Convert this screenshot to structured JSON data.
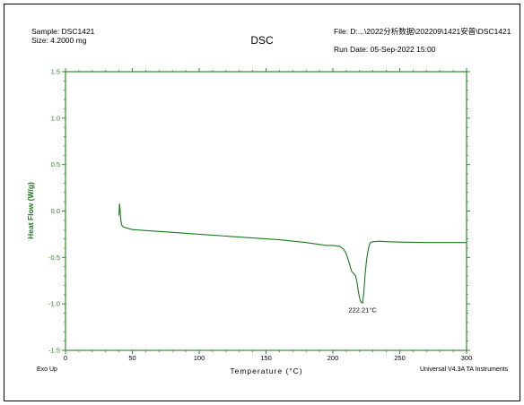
{
  "header": {
    "sample": "Sample: DSC1421",
    "size": "Size:  4.2000 mg",
    "title": "DSC",
    "file": "File: D:...\\2022分析数据\\202209\\1421安普\\DSC1421",
    "run_date": "Run Date: 05-Sep-2022 15:00"
  },
  "footer": {
    "exo": "Exo Up",
    "software": "Universal V4.3A TA Instruments"
  },
  "colors": {
    "curve": "#1a7a1a",
    "axis": "#2e8b2e"
  },
  "chart_data": {
    "type": "line",
    "title": "DSC",
    "xlabel": "Temperature (°C)",
    "ylabel": "Heat Flow (W/g)",
    "xlim": [
      0,
      300
    ],
    "ylim": [
      -1.5,
      1.5
    ],
    "xticks": [
      0,
      50,
      100,
      150,
      200,
      250,
      300
    ],
    "yticks": [
      -1.5,
      -1.0,
      -0.5,
      0.0,
      0.5,
      1.0,
      1.5
    ],
    "xtick_labels": [
      "0",
      "50",
      "100",
      "150",
      "200",
      "250",
      "300"
    ],
    "ytick_labels": [
      "-1.5",
      "-1.0",
      "-0.5",
      "0.0",
      "0.5",
      "1.0",
      "1.5"
    ],
    "grid": false,
    "series": [
      {
        "x": [
          40.0,
          40.4,
          40.8,
          41.2,
          41.6,
          42,
          43,
          45,
          50,
          60,
          80,
          100,
          120,
          140,
          160,
          180,
          190,
          195,
          200,
          205,
          208,
          210,
          212,
          214,
          216,
          217,
          218,
          219,
          220,
          221,
          222.2,
          223,
          224,
          225,
          226,
          227,
          228,
          230,
          235,
          240,
          250,
          270,
          300
        ],
        "y": [
          -0.05,
          0.08,
          0.02,
          -0.07,
          -0.12,
          -0.15,
          -0.17,
          -0.18,
          -0.2,
          -0.21,
          -0.23,
          -0.25,
          -0.27,
          -0.29,
          -0.31,
          -0.34,
          -0.36,
          -0.37,
          -0.37,
          -0.38,
          -0.41,
          -0.46,
          -0.55,
          -0.65,
          -0.68,
          -0.7,
          -0.76,
          -0.86,
          -0.94,
          -0.98,
          -0.99,
          -0.9,
          -0.7,
          -0.55,
          -0.45,
          -0.38,
          -0.34,
          -0.33,
          -0.325,
          -0.33,
          -0.335,
          -0.34,
          -0.34
        ]
      }
    ],
    "annotations": [
      {
        "text": "222.21°C",
        "x": 222.21,
        "y": -1.03
      }
    ]
  }
}
